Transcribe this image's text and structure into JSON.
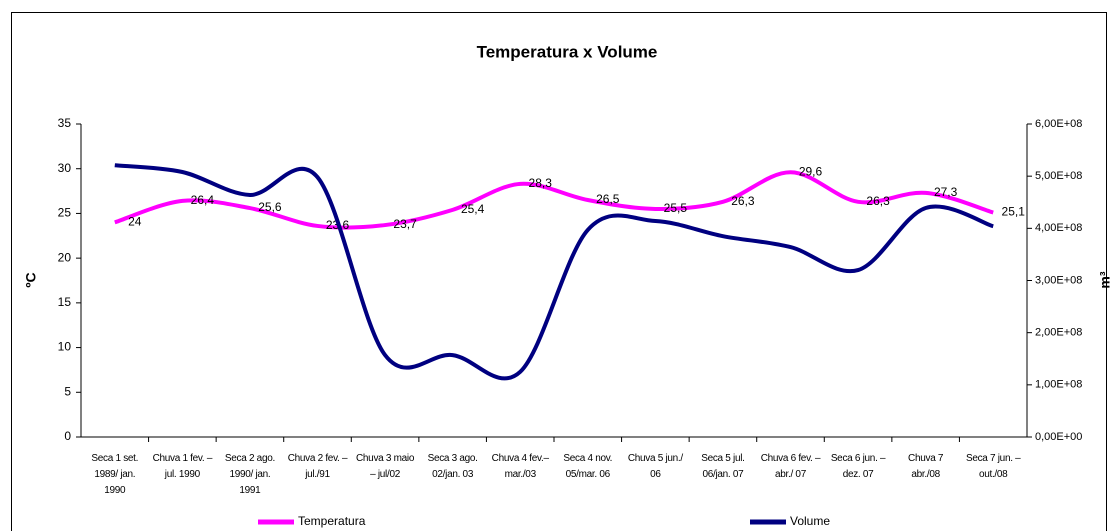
{
  "chart_data": {
    "type": "line",
    "title": "Temperatura x Volume",
    "y_label": "ºC",
    "y2_label": "m³",
    "categories": [
      "Seca 1 set. 1989/ jan. 1990",
      "Chuva 1 fev. – jul. 1990",
      "Seca 2 ago. 1990/ jan. 1991",
      "Chuva 2 fev. – jul./91",
      "Chuva 3 maio – jul/02",
      "Seca 3 ago. 02/jan. 03",
      "Chuva 4 fev.– mar./03",
      "Seca 4 nov. 05/mar. 06",
      "Chuva 5 jun./ 06",
      "Seca 5 jul. 06/jan. 07",
      "Chuva 6 fev. – abr./ 07",
      "Seca 6 jun. – dez. 07",
      "Chuva 7 abr./08",
      "Seca 7 jun. – out./08"
    ],
    "series": [
      {
        "name": "Temperatura",
        "color": "#ff00ff",
        "values": [
          24,
          26.4,
          25.6,
          23.6,
          23.7,
          25.4,
          28.3,
          26.5,
          25.5,
          26.3,
          29.6,
          26.3,
          27.3,
          25.1
        ],
        "value_labels": [
          "24",
          "26,4",
          "25,6",
          "23,6",
          "23,7",
          "25,4",
          "28,3",
          "26,5",
          "25,5",
          "26,3",
          "29,6",
          "26,3",
          "27,3",
          "25,1"
        ]
      },
      {
        "name": "Volume",
        "color": "#000080",
        "axis": "y2",
        "values": [
          521000000,
          508000000,
          464000000,
          498000000,
          157000000,
          157000000,
          125000000,
          397000000,
          414000000,
          385000000,
          364000000,
          320000000,
          439000000,
          404000000
        ]
      }
    ],
    "ylim": [
      0,
      35
    ],
    "yticks": [
      0,
      5,
      10,
      15,
      20,
      25,
      30,
      35
    ],
    "y2lim": [
      0,
      600000000
    ],
    "y2ticks": [
      {
        "value": 0,
        "label": "0,00E+00"
      },
      {
        "value": 100000000,
        "label": "1,00E+08"
      },
      {
        "value": 200000000,
        "label": "2,00E+08"
      },
      {
        "value": 300000000,
        "label": "3,00E+08"
      },
      {
        "value": 400000000,
        "label": "4,00E+08"
      },
      {
        "value": 500000000,
        "label": "5,00E+08"
      },
      {
        "value": 600000000,
        "label": "6,00E+08"
      }
    ],
    "legend": "bottom"
  }
}
